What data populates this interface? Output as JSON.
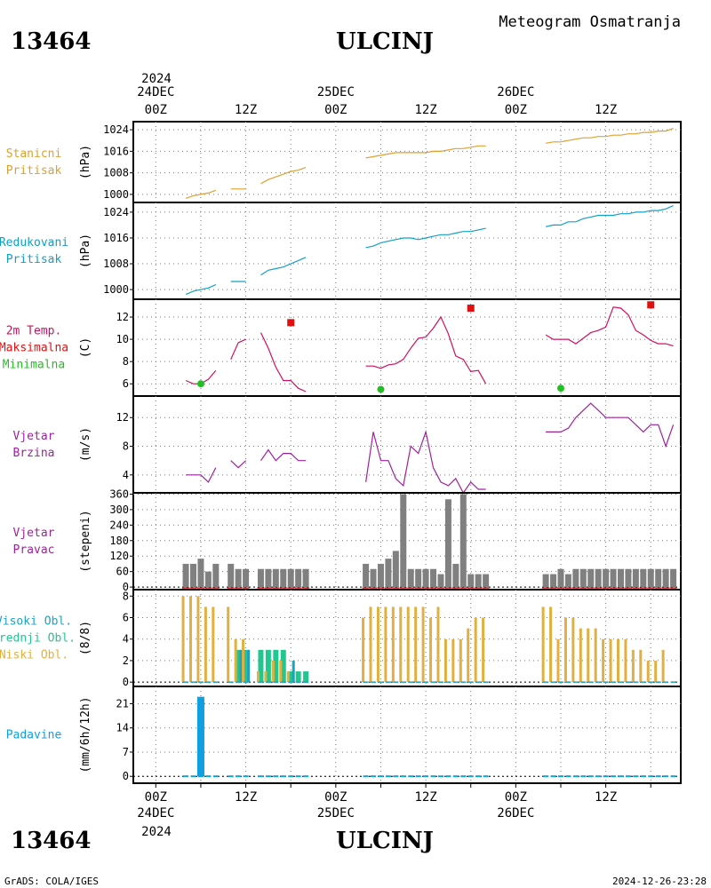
{
  "header": {
    "station_id": "13464",
    "station_name": "ULCINJ",
    "subtitle": "Meteogram Osmatranja"
  },
  "footer": {
    "station_id": "13464",
    "station_name": "ULCINJ",
    "credit": "GrADS: COLA/IGES",
    "timestamp": "2024-12-26-23:28"
  },
  "time_axis": {
    "top_year": "2024",
    "bottom_year": "2024",
    "ticks": [
      {
        "hour": 0,
        "label": "00Z",
        "date": "24DEC"
      },
      {
        "hour": 12,
        "label": "12Z",
        "date": ""
      },
      {
        "hour": 24,
        "label": "00Z",
        "date": "25DEC"
      },
      {
        "hour": 36,
        "label": "12Z",
        "date": ""
      },
      {
        "hour": 48,
        "label": "00Z",
        "date": "26DEC"
      },
      {
        "hour": 60,
        "label": "12Z",
        "date": ""
      }
    ],
    "range_hours": [
      -3,
      70
    ]
  },
  "colors": {
    "pressure": "#e0a030",
    "reduced": "#10a0c8",
    "temp_label": "#d01060",
    "max": "#e01010",
    "min": "#20c020",
    "wind": "#a020a0",
    "wind_dir": "#808080",
    "high_cloud": "#20a0c0",
    "mid_cloud": "#20c890",
    "low_cloud": "#e0b040",
    "precip": "#10a0e0"
  },
  "chart_data": [
    {
      "type": "line",
      "panel": "station_pressure",
      "labels": [
        "Stanicni",
        "Pritisak"
      ],
      "ylabel": "(hPa)",
      "ylim": [
        997,
        1027
      ],
      "yticks": [
        "1000",
        "1008",
        "1016",
        "1024"
      ],
      "segments": [
        {
          "x": [
            4,
            5,
            6,
            7,
            8
          ],
          "y": [
            998.5,
            999.5,
            1000.0,
            1000.5,
            1001.5
          ]
        },
        {
          "x": [
            10,
            11,
            12
          ],
          "y": [
            1002.0,
            1002.0,
            1002.0
          ]
        },
        {
          "x": [
            14,
            15,
            16,
            17,
            18,
            19,
            20
          ],
          "y": [
            1004.0,
            1005.5,
            1006.5,
            1007.5,
            1008.5,
            1009.0,
            1010.0
          ]
        },
        {
          "x": [
            28,
            29,
            30,
            31,
            32,
            33,
            34,
            35,
            36,
            37,
            38,
            39,
            40,
            41,
            42,
            43,
            44
          ],
          "y": [
            1013.5,
            1014.0,
            1014.5,
            1015.0,
            1015.5,
            1015.5,
            1015.5,
            1015.5,
            1015.5,
            1016.0,
            1016.0,
            1016.5,
            1017.0,
            1017.0,
            1017.5,
            1018.0,
            1018.0
          ]
        },
        {
          "x": [
            52,
            53,
            54,
            55,
            56,
            57,
            58,
            59,
            60,
            61,
            62,
            63,
            64,
            65,
            66,
            67,
            68,
            69
          ],
          "y": [
            1019.0,
            1019.5,
            1019.5,
            1020.0,
            1020.5,
            1021.0,
            1021.0,
            1021.5,
            1021.5,
            1022.0,
            1022.0,
            1022.5,
            1022.5,
            1023.0,
            1023.0,
            1023.5,
            1023.5,
            1024.5
          ]
        }
      ]
    },
    {
      "type": "line",
      "panel": "reduced_pressure",
      "labels": [
        "Redukovani",
        "Pritisak"
      ],
      "ylabel": "(hPa)",
      "ylim": [
        997,
        1027
      ],
      "yticks": [
        "1000",
        "1008",
        "1016",
        "1024"
      ],
      "segments": [
        {
          "x": [
            4,
            5,
            6,
            7,
            8
          ],
          "y": [
            998.5,
            999.5,
            1000.0,
            1000.5,
            1001.5
          ]
        },
        {
          "x": [
            10,
            11,
            12
          ],
          "y": [
            1002.5,
            1002.5,
            1002.5
          ]
        },
        {
          "x": [
            14,
            15,
            16,
            17,
            18,
            19,
            20
          ],
          "y": [
            1004.5,
            1006.0,
            1006.5,
            1007.0,
            1008.0,
            1009.0,
            1010.0
          ]
        },
        {
          "x": [
            28,
            29,
            30,
            31,
            32,
            33,
            34,
            35,
            36,
            37,
            38,
            39,
            40,
            41,
            42,
            43,
            44
          ],
          "y": [
            1013.0,
            1013.5,
            1014.5,
            1015.0,
            1015.5,
            1016.0,
            1016.0,
            1015.5,
            1016.0,
            1016.5,
            1017.0,
            1017.0,
            1017.5,
            1018.0,
            1018.0,
            1018.5,
            1019.0
          ]
        },
        {
          "x": [
            52,
            53,
            54,
            55,
            56,
            57,
            58,
            59,
            60,
            61,
            62,
            63,
            64,
            65,
            66,
            67,
            68,
            69
          ],
          "y": [
            1019.5,
            1020.0,
            1020.0,
            1021.0,
            1021.0,
            1022.0,
            1022.5,
            1023.0,
            1023.0,
            1023.0,
            1023.5,
            1023.5,
            1024.0,
            1024.0,
            1024.5,
            1024.5,
            1025.0,
            1026.0
          ]
        }
      ]
    },
    {
      "type": "line",
      "panel": "temperature",
      "labels": [
        "2m Temp.",
        "Maksimalna",
        "Minimalna"
      ],
      "ylabel": "(C)",
      "ylim": [
        4.9,
        13.6
      ],
      "yticks": [
        "6",
        "8",
        "10",
        "12"
      ],
      "segments": [
        {
          "x": [
            4,
            5,
            6,
            7,
            8
          ],
          "y": [
            6.3,
            6.0,
            6.0,
            6.4,
            7.2
          ]
        },
        {
          "x": [
            10,
            11,
            12
          ],
          "y": [
            8.2,
            9.7,
            10.0
          ]
        },
        {
          "x": [
            14,
            15,
            16,
            17,
            18,
            19,
            20
          ],
          "y": [
            10.6,
            9.2,
            7.5,
            6.3,
            6.3,
            5.6,
            5.3
          ]
        },
        {
          "x": [
            28,
            29,
            30,
            31,
            32,
            33,
            34,
            35,
            36,
            37,
            38,
            39,
            40,
            41,
            42,
            43,
            44
          ],
          "y": [
            7.6,
            7.6,
            7.4,
            7.7,
            7.8,
            8.2,
            9.2,
            10.1,
            10.2,
            11.0,
            12.0,
            10.5,
            8.5,
            8.2,
            7.1,
            7.2,
            6.0
          ]
        },
        {
          "x": [
            52,
            53,
            54,
            55,
            56,
            57,
            58,
            59,
            60,
            61,
            62,
            63,
            64,
            65,
            66,
            67,
            68,
            69
          ],
          "y": [
            10.4,
            10.0,
            10.0,
            10.0,
            9.6,
            10.1,
            10.6,
            10.8,
            11.1,
            12.9,
            12.8,
            12.2,
            10.8,
            10.4,
            9.9,
            9.6,
            9.6,
            9.4
          ]
        }
      ],
      "max_points": {
        "x": [
          18,
          42,
          66
        ],
        "y": [
          11.5,
          12.8,
          13.1
        ]
      },
      "min_points": {
        "x": [
          6,
          30,
          54
        ],
        "y": [
          6.0,
          5.5,
          5.6
        ]
      }
    },
    {
      "type": "line",
      "panel": "wind_speed",
      "labels": [
        "Vjetar",
        "Brzina"
      ],
      "ylabel": "(m/s)",
      "ylim": [
        1.5,
        15
      ],
      "yticks": [
        "4",
        "8",
        "12"
      ],
      "segments": [
        {
          "x": [
            4,
            5,
            6,
            7,
            8
          ],
          "y": [
            4,
            4,
            4,
            3,
            5
          ]
        },
        {
          "x": [
            10,
            11,
            12
          ],
          "y": [
            6,
            5,
            6
          ]
        },
        {
          "x": [
            14,
            15,
            16,
            17,
            18,
            19,
            20
          ],
          "y": [
            6,
            7.5,
            6,
            7,
            7,
            6,
            6
          ]
        },
        {
          "x": [
            28,
            29,
            30,
            31,
            32,
            33,
            34,
            35,
            36,
            37,
            38,
            39,
            40,
            41,
            42,
            43,
            44
          ],
          "y": [
            3,
            10,
            6,
            6,
            3.5,
            2.5,
            8,
            7,
            10,
            5,
            3,
            2.5,
            3.5,
            1.5,
            3,
            2,
            2
          ]
        },
        {
          "x": [
            52,
            53,
            54,
            55,
            56,
            57,
            58,
            59,
            60,
            61,
            62,
            63,
            64,
            65,
            66,
            67,
            68,
            69
          ],
          "y": [
            10,
            10,
            10,
            10.5,
            12,
            13,
            14,
            13,
            12,
            12,
            12,
            12,
            11,
            10,
            11,
            11,
            8,
            11
          ]
        }
      ]
    },
    {
      "type": "bar",
      "panel": "wind_direction",
      "labels": [
        "Vjetar",
        "Pravac"
      ],
      "ylabel": "(stepeni)",
      "ylim": [
        -10,
        365
      ],
      "yticks": [
        "0",
        "60",
        "120",
        "180",
        "240",
        "300",
        "360"
      ],
      "x": [
        4,
        5,
        6,
        7,
        8,
        10,
        11,
        12,
        14,
        15,
        16,
        17,
        18,
        19,
        20,
        28,
        29,
        30,
        31,
        32,
        33,
        34,
        35,
        36,
        37,
        38,
        39,
        40,
        41,
        42,
        43,
        44,
        52,
        53,
        54,
        55,
        56,
        57,
        58,
        59,
        60,
        61,
        62,
        63,
        64,
        65,
        66,
        67,
        68,
        69
      ],
      "values": [
        90,
        90,
        110,
        60,
        90,
        90,
        70,
        70,
        70,
        70,
        70,
        70,
        70,
        70,
        70,
        90,
        70,
        90,
        110,
        140,
        360,
        70,
        70,
        70,
        70,
        50,
        340,
        90,
        360,
        50,
        50,
        50,
        50,
        50,
        70,
        50,
        70,
        70,
        70,
        70,
        70,
        70,
        70,
        70,
        70,
        70,
        70,
        70,
        70,
        70
      ]
    },
    {
      "type": "bar",
      "panel": "clouds",
      "labels": [
        "Visoki Obl.",
        "Srednji Obl.",
        "Niski Obl."
      ],
      "ylabel": "(8/8)",
      "ylim": [
        -0.4,
        8.6
      ],
      "yticks": [
        "0",
        "2",
        "4",
        "6",
        "8"
      ],
      "x": [
        4,
        5,
        6,
        7,
        8,
        10,
        11,
        12,
        14,
        15,
        16,
        17,
        18,
        19,
        20,
        28,
        29,
        30,
        31,
        32,
        33,
        34,
        35,
        36,
        37,
        38,
        39,
        40,
        41,
        42,
        43,
        44,
        52,
        53,
        54,
        55,
        56,
        57,
        58,
        59,
        60,
        61,
        62,
        63,
        64,
        65,
        66,
        67,
        68,
        69
      ],
      "series": [
        {
          "name": "Visoki Obl.",
          "values": [
            0,
            0,
            0,
            0,
            0,
            0,
            3,
            3,
            0,
            0,
            0,
            0,
            2,
            0,
            0,
            0,
            0,
            0,
            0,
            0,
            0,
            0,
            0,
            0,
            0,
            0,
            0,
            0,
            0,
            0,
            0,
            0,
            0,
            0,
            0,
            0,
            0,
            0,
            0,
            0,
            0,
            0,
            0,
            0,
            0,
            0,
            0,
            0,
            0,
            0
          ]
        },
        {
          "name": "Srednji Obl.",
          "values": [
            0,
            0,
            0,
            0,
            0,
            0,
            3,
            3,
            3,
            3,
            3,
            3,
            1,
            1,
            1,
            0,
            0,
            0,
            0,
            0,
            0,
            0,
            0,
            0,
            0,
            0,
            0,
            0,
            0,
            0,
            0,
            0,
            0,
            0,
            0,
            0,
            0,
            0,
            0,
            0,
            0,
            0,
            0,
            0,
            0,
            0,
            0,
            0,
            0,
            0
          ]
        },
        {
          "name": "Niski Obl.",
          "values": [
            8,
            8,
            8,
            7,
            7,
            7,
            4,
            4,
            1,
            1,
            2,
            2,
            1,
            0,
            0,
            6,
            7,
            7,
            7,
            7,
            7,
            7,
            7,
            7,
            6,
            7,
            4,
            4,
            4,
            5,
            6,
            6,
            7,
            7,
            4,
            6,
            6,
            5,
            5,
            5,
            4,
            4,
            4,
            4,
            3,
            3,
            2,
            2,
            3,
            0
          ]
        }
      ]
    },
    {
      "type": "bar",
      "panel": "precipitation",
      "labels": [
        "Padavine"
      ],
      "ylabel": "(mm/6h/12h)",
      "ylim": [
        -2,
        26
      ],
      "yticks": [
        "0",
        "7",
        "14",
        "21"
      ],
      "x": [
        6
      ],
      "values": [
        23
      ]
    }
  ]
}
